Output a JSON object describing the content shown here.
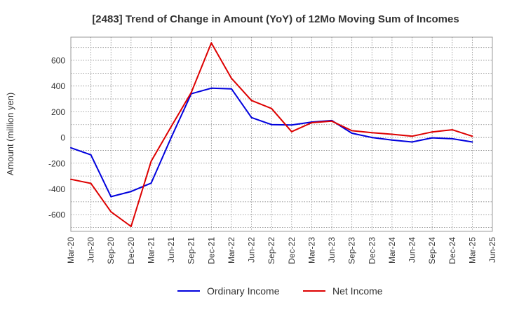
{
  "chart_data": {
    "type": "line",
    "title": "[2483]  Trend of Change in Amount (YoY) of 12Mo Moving Sum of Incomes",
    "ylabel": "Amount (million yen)",
    "xlabel": "",
    "ylim": [
      -730,
      780
    ],
    "yticks": [
      -600,
      -400,
      -200,
      0,
      200,
      400,
      600
    ],
    "categories": [
      "Mar-20",
      "Jun-20",
      "Sep-20",
      "Dec-20",
      "Mar-21",
      "Jun-21",
      "Sep-21",
      "Dec-21",
      "Mar-22",
      "Jun-22",
      "Sep-22",
      "Dec-22",
      "Mar-23",
      "Jun-23",
      "Sep-23",
      "Dec-23",
      "Mar-24",
      "Jun-24",
      "Sep-24",
      "Dec-24",
      "Mar-25",
      "Jun-25"
    ],
    "grid": true,
    "legend_position": "bottom",
    "series": [
      {
        "name": "Ordinary Income",
        "color": "#0000dd",
        "values": [
          -80,
          -135,
          -460,
          -420,
          -355,
          0,
          340,
          383,
          378,
          155,
          100,
          97,
          120,
          132,
          33,
          0,
          -20,
          -35,
          -3,
          -10,
          -35,
          null
        ]
      },
      {
        "name": "Net Income",
        "color": "#dd0000",
        "values": [
          -325,
          -357,
          -578,
          -692,
          -185,
          85,
          350,
          735,
          460,
          288,
          225,
          45,
          115,
          127,
          53,
          37,
          25,
          10,
          43,
          60,
          10,
          null
        ]
      }
    ]
  }
}
